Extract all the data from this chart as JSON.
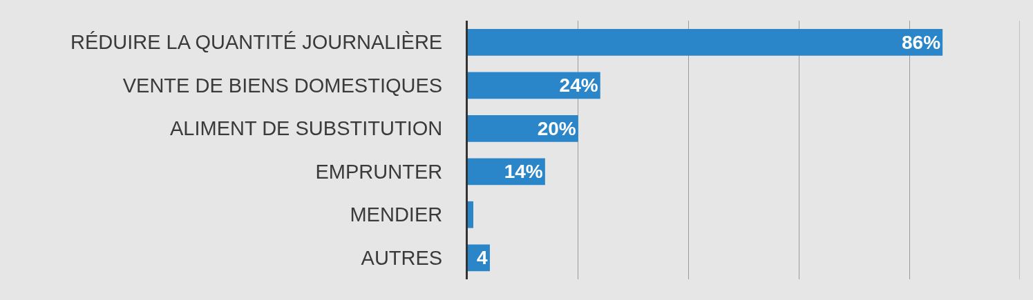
{
  "chart_data": {
    "type": "bar",
    "orientation": "horizontal",
    "categories": [
      "RÉDUIRE LA QUANTITÉ JOURNALIÈRE",
      "VENTE DE BIENS DOMESTIQUES",
      "ALIMENT DE SUBSTITUTION",
      "EMPRUNTER",
      "MENDIER",
      "AUTRES"
    ],
    "values": [
      86,
      24,
      20,
      14,
      1,
      4
    ],
    "value_labels": [
      "86%",
      "24%",
      "20%",
      "14%",
      null,
      "4"
    ],
    "color": "#2a86c8",
    "xlim": [
      0,
      100
    ],
    "xticks": [
      {
        "value": 0,
        "label": null
      },
      {
        "value": 20,
        "label": null
      },
      {
        "value": 40,
        "label": null
      },
      {
        "value": 60,
        "label": null
      },
      {
        "value": 80,
        "label": null
      },
      {
        "value": 100,
        "label": null
      }
    ],
    "grid": "x",
    "tick_labels": "y"
  }
}
